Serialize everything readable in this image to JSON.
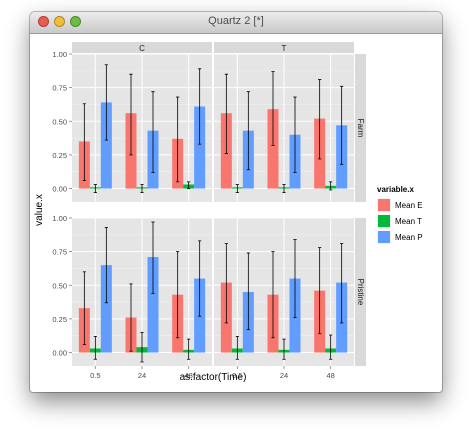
{
  "window": {
    "title": "Quartz 2 [*]"
  },
  "colors": {
    "Mean E": "#f8766d",
    "Mean T": "#00ba38",
    "Mean P": "#619cff"
  },
  "chart_data": {
    "type": "bar",
    "xlabel": "as.factor(Time)",
    "ylabel": "value.x",
    "ylim": [
      -0.1,
      1.0
    ],
    "yticks": [
      "0.00",
      "0.25",
      "0.50",
      "0.75",
      "1.00"
    ],
    "ytick_values": [
      0,
      0.25,
      0.5,
      0.75,
      1.0
    ],
    "grid": true,
    "legend": {
      "title": "variable.x",
      "position": "right",
      "entries": [
        "Mean E",
        "Mean T",
        "Mean P"
      ]
    },
    "facet_columns": [
      "C",
      "T"
    ],
    "facet_rows": [
      "Farm",
      "Pristine"
    ],
    "categories": [
      "0.5",
      "24",
      "48"
    ],
    "panels": [
      {
        "col": "C",
        "row": "Farm",
        "series": [
          {
            "name": "Mean E",
            "values": [
              0.35,
              0.56,
              0.37
            ],
            "err_low": [
              0.06,
              0.25,
              0.05
            ],
            "err_high": [
              0.63,
              0.85,
              0.68
            ]
          },
          {
            "name": "Mean T",
            "values": [
              0.0,
              0.0,
              0.03
            ],
            "err_low": [
              -0.03,
              -0.03,
              0.0
            ],
            "err_high": [
              0.03,
              0.03,
              0.05
            ]
          },
          {
            "name": "Mean P",
            "values": [
              0.64,
              0.43,
              0.61
            ],
            "err_low": [
              0.36,
              0.12,
              0.33
            ],
            "err_high": [
              0.92,
              0.72,
              0.89
            ]
          }
        ]
      },
      {
        "col": "T",
        "row": "Farm",
        "series": [
          {
            "name": "Mean E",
            "values": [
              0.56,
              0.59,
              0.52
            ],
            "err_low": [
              0.26,
              0.32,
              0.22
            ],
            "err_high": [
              0.85,
              0.87,
              0.81
            ]
          },
          {
            "name": "Mean T",
            "values": [
              0.0,
              0.0,
              0.02
            ],
            "err_low": [
              -0.03,
              -0.03,
              -0.01
            ],
            "err_high": [
              0.03,
              0.03,
              0.05
            ]
          },
          {
            "name": "Mean P",
            "values": [
              0.43,
              0.4,
              0.47
            ],
            "err_low": [
              0.14,
              0.12,
              0.18
            ],
            "err_high": [
              0.72,
              0.68,
              0.76
            ]
          }
        ]
      },
      {
        "col": "C",
        "row": "Pristine",
        "series": [
          {
            "name": "Mean E",
            "values": [
              0.33,
              0.26,
              0.43
            ],
            "err_low": [
              0.06,
              0.01,
              0.11
            ],
            "err_high": [
              0.6,
              0.51,
              0.75
            ]
          },
          {
            "name": "Mean T",
            "values": [
              0.03,
              0.04,
              0.02
            ],
            "err_low": [
              -0.05,
              -0.07,
              -0.05
            ],
            "err_high": [
              0.12,
              0.15,
              0.1
            ]
          },
          {
            "name": "Mean P",
            "values": [
              0.65,
              0.71,
              0.55
            ],
            "err_low": [
              0.37,
              0.44,
              0.27
            ],
            "err_high": [
              0.93,
              0.97,
              0.83
            ]
          }
        ]
      },
      {
        "col": "T",
        "row": "Pristine",
        "series": [
          {
            "name": "Mean E",
            "values": [
              0.52,
              0.43,
              0.46
            ],
            "err_low": [
              0.22,
              0.11,
              0.14
            ],
            "err_high": [
              0.81,
              0.75,
              0.78
            ]
          },
          {
            "name": "Mean T",
            "values": [
              0.03,
              0.02,
              0.03
            ],
            "err_low": [
              -0.05,
              -0.05,
              -0.05
            ],
            "err_high": [
              0.12,
              0.1,
              0.13
            ]
          },
          {
            "name": "Mean P",
            "values": [
              0.45,
              0.55,
              0.52
            ],
            "err_low": [
              0.17,
              0.26,
              0.22
            ],
            "err_high": [
              0.74,
              0.84,
              0.81
            ]
          }
        ]
      }
    ]
  }
}
